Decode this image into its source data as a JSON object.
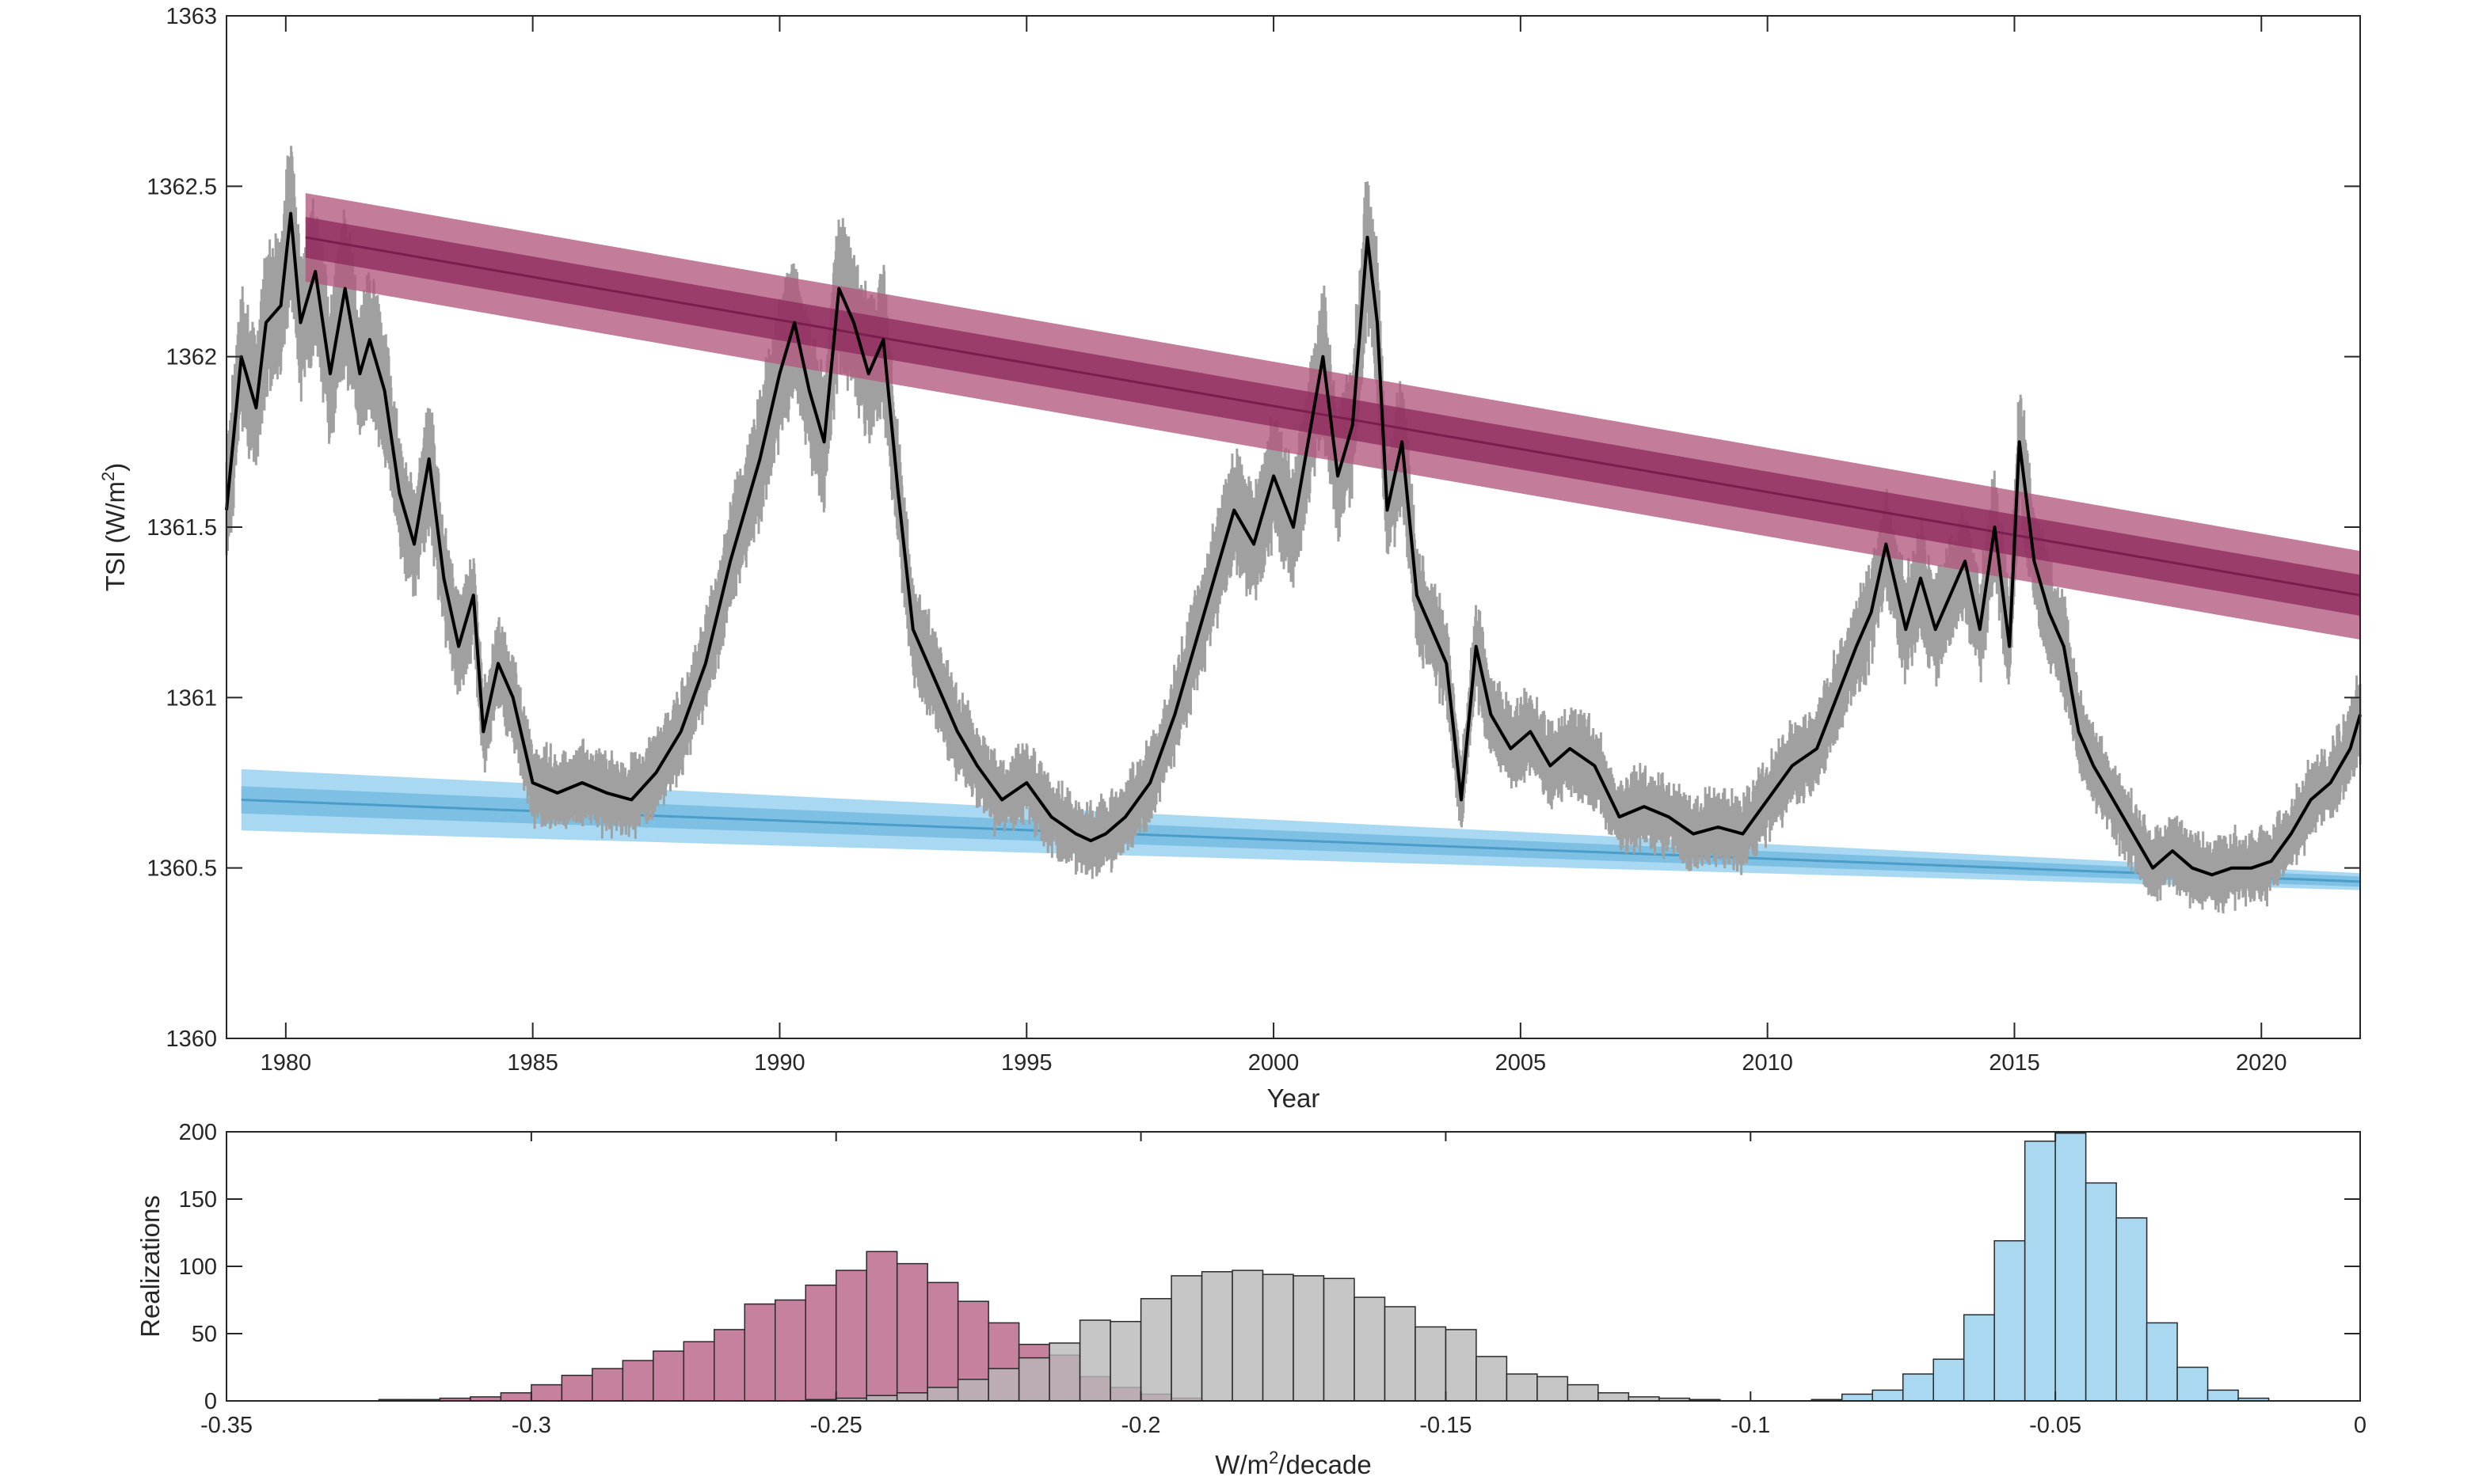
{
  "chart_data": [
    {
      "type": "line",
      "xlabel": "Year",
      "ylabel": "TSI (W/m²)",
      "ylabel_base": "TSI (W/m",
      "ylabel_sup": "2",
      "ylabel_tail": ")",
      "xlim": [
        1978.8,
        2022.0
      ],
      "ylim": [
        1360,
        1363
      ],
      "xticks": [
        1980,
        1985,
        1990,
        1995,
        2000,
        2005,
        2010,
        2015,
        2020
      ],
      "yticks": [
        1360,
        1360.5,
        1361,
        1361.5,
        1362,
        1362.5,
        1363
      ],
      "grid": false,
      "legend": "none",
      "colors": {
        "trend_a": "#7b1e4f",
        "trend_a_band": "#b3577f",
        "trend_b": "#4a9cc9",
        "trend_b_band": "#a9d9f2",
        "daily": "#a0a0a0",
        "smooth": "#000000"
      },
      "smoothed_tsi": {
        "x": [
          1978.8,
          1979.1,
          1979.4,
          1979.6,
          1979.9,
          1980.1,
          1980.3,
          1980.6,
          1980.9,
          1981.2,
          1981.5,
          1981.7,
          1982.0,
          1982.3,
          1982.6,
          1982.9,
          1983.2,
          1983.5,
          1983.8,
          1984.0,
          1984.3,
          1984.6,
          1985.0,
          1985.5,
          1986.0,
          1986.5,
          1987.0,
          1987.5,
          1988.0,
          1988.5,
          1989.0,
          1989.3,
          1989.6,
          1990.0,
          1990.3,
          1990.6,
          1990.9,
          1991.2,
          1991.5,
          1991.8,
          1992.1,
          1992.4,
          1992.7,
          1993.0,
          1993.3,
          1993.6,
          1994.0,
          1994.5,
          1995.0,
          1995.5,
          1996.0,
          1996.3,
          1996.6,
          1997.0,
          1997.5,
          1998.0,
          1998.4,
          1998.8,
          1999.2,
          1999.6,
          2000.0,
          2000.4,
          2000.7,
          2001.0,
          2001.3,
          2001.6,
          2001.9,
          2002.1,
          2002.3,
          2002.6,
          2002.9,
          2003.2,
          2003.5,
          2003.8,
          2004.1,
          2004.4,
          2004.8,
          2005.2,
          2005.6,
          2006.0,
          2006.5,
          2007.0,
          2007.5,
          2008.0,
          2008.5,
          2009.0,
          2009.5,
          2010.0,
          2010.5,
          2011.0,
          2011.4,
          2011.8,
          2012.1,
          2012.4,
          2012.8,
          2013.1,
          2013.4,
          2013.7,
          2014.0,
          2014.3,
          2014.6,
          2014.9,
          2015.1,
          2015.4,
          2015.7,
          2016.0,
          2016.3,
          2016.6,
          2017.0,
          2017.4,
          2017.8,
          2018.2,
          2018.6,
          2019.0,
          2019.4,
          2019.8,
          2020.2,
          2020.6,
          2021.0,
          2021.4,
          2021.8,
          2022.0
        ],
        "y": [
          1361.55,
          1362.0,
          1361.85,
          1362.1,
          1362.15,
          1362.42,
          1362.1,
          1362.25,
          1361.95,
          1362.2,
          1361.95,
          1362.05,
          1361.9,
          1361.6,
          1361.45,
          1361.7,
          1361.35,
          1361.15,
          1361.3,
          1360.9,
          1361.1,
          1361.0,
          1360.75,
          1360.72,
          1360.75,
          1360.72,
          1360.7,
          1360.78,
          1360.9,
          1361.1,
          1361.4,
          1361.55,
          1361.7,
          1361.95,
          1362.1,
          1361.9,
          1361.75,
          1362.2,
          1362.1,
          1361.95,
          1362.05,
          1361.6,
          1361.2,
          1361.1,
          1361.0,
          1360.9,
          1360.8,
          1360.7,
          1360.75,
          1360.65,
          1360.6,
          1360.58,
          1360.6,
          1360.65,
          1360.75,
          1360.95,
          1361.15,
          1361.35,
          1361.55,
          1361.45,
          1361.65,
          1361.5,
          1361.75,
          1362.0,
          1361.65,
          1361.8,
          1362.35,
          1362.1,
          1361.55,
          1361.75,
          1361.3,
          1361.2,
          1361.1,
          1360.7,
          1361.15,
          1360.95,
          1360.85,
          1360.9,
          1360.8,
          1360.85,
          1360.8,
          1360.65,
          1360.68,
          1360.65,
          1360.6,
          1360.62,
          1360.6,
          1360.7,
          1360.8,
          1360.85,
          1361.0,
          1361.15,
          1361.25,
          1361.45,
          1361.2,
          1361.35,
          1361.2,
          1361.3,
          1361.4,
          1361.2,
          1361.5,
          1361.15,
          1361.75,
          1361.4,
          1361.25,
          1361.15,
          1360.9,
          1360.8,
          1360.7,
          1360.6,
          1360.5,
          1360.55,
          1360.5,
          1360.48,
          1360.5,
          1360.5,
          1360.52,
          1360.6,
          1360.7,
          1360.75,
          1360.85,
          1360.95
        ]
      },
      "trend_upper": {
        "x": [
          1980.4,
          2022.0
        ],
        "y": [
          1362.35,
          1361.3
        ],
        "inner_band": [
          0.06,
          0.06
        ],
        "outer_band": [
          0.13,
          0.13
        ]
      },
      "trend_lower": {
        "x": [
          1979.1,
          2022.0
        ],
        "y": [
          1360.7,
          1360.46
        ],
        "inner_band": [
          0.04,
          0.015
        ],
        "outer_band": [
          0.09,
          0.025
        ]
      }
    },
    {
      "type": "bar",
      "xlabel": "W/m²/decade",
      "xlabel_base": "W/m",
      "xlabel_sup": "2",
      "xlabel_tail": "/decade",
      "ylabel": "Realizations",
      "xlim": [
        -0.35,
        0
      ],
      "ylim": [
        0,
        200
      ],
      "xticks": [
        -0.35,
        -0.3,
        -0.25,
        -0.2,
        -0.15,
        -0.1,
        -0.05,
        0
      ],
      "xtick_labels": [
        "-0.35",
        "-0.3",
        "-0.25",
        "-0.2",
        "-0.15",
        "-0.1",
        "-0.05",
        "0"
      ],
      "yticks": [
        0,
        50,
        100,
        150,
        200
      ],
      "bin_width": 0.005,
      "series": [
        {
          "color": "#b3577f",
          "opacity": 0.75,
          "bins_start": -0.325,
          "values": [
            1,
            1,
            2,
            3,
            6,
            12,
            19,
            24,
            30,
            37,
            44,
            53,
            72,
            75,
            86,
            97,
            111,
            102,
            88,
            74,
            58,
            42,
            34,
            18,
            10,
            5,
            2
          ]
        },
        {
          "color": "#b8b8b8",
          "opacity": 0.8,
          "bins_start": -0.255,
          "values": [
            1,
            2,
            4,
            6,
            10,
            16,
            24,
            32,
            43,
            60,
            59,
            76,
            93,
            96,
            97,
            94,
            93,
            91,
            77,
            70,
            55,
            53,
            33,
            20,
            18,
            12,
            6,
            3,
            2,
            1
          ]
        },
        {
          "color": "#aad8f0",
          "opacity": 1,
          "bins_start": -0.09,
          "values": [
            1,
            5,
            8,
            20,
            31,
            64,
            119,
            193,
            199,
            162,
            136,
            58,
            25,
            8,
            2
          ]
        }
      ]
    }
  ]
}
